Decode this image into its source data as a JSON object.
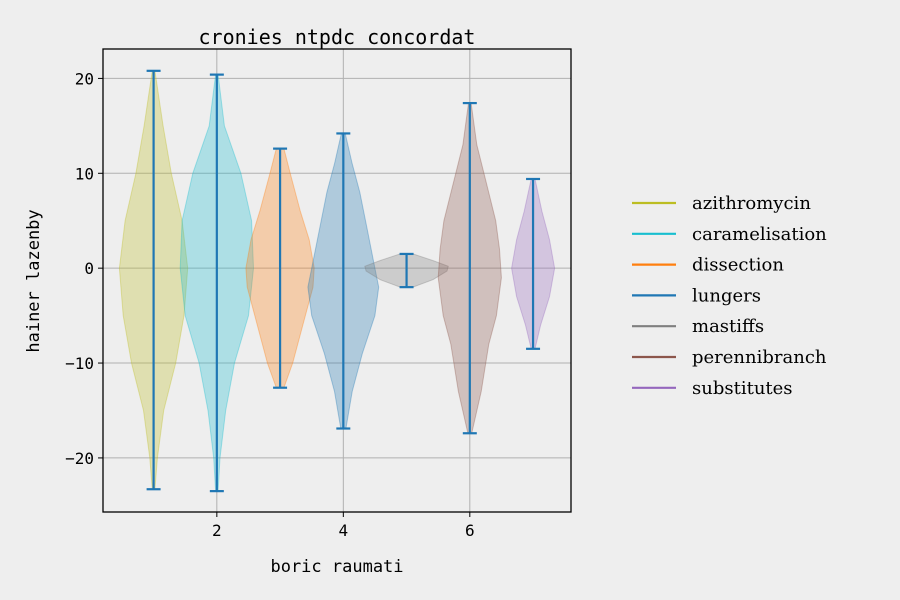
{
  "chart_data": {
    "type": "violin",
    "title": "cronies ntpdc concordat",
    "xlabel": "boric raumati",
    "ylabel": "hainer lazenby",
    "xlim": [
      0.2,
      7.6
    ],
    "ylim": [
      -25.7,
      23.1
    ],
    "xticks": [
      2,
      4,
      6
    ],
    "yticks": [
      -20,
      -10,
      0,
      10,
      20
    ],
    "grid": true,
    "legend_position": "right",
    "stat_color": "#1f77b4",
    "series": [
      {
        "name": "azithromycin",
        "position": 1,
        "min": -23.3,
        "max": 20.8,
        "color": "#bcbd22",
        "density": [
          [
            -23.3,
            0.02
          ],
          [
            -20,
            0.06
          ],
          [
            -15,
            0.16
          ],
          [
            -10,
            0.35
          ],
          [
            -5,
            0.48
          ],
          [
            0,
            0.54
          ],
          [
            5,
            0.45
          ],
          [
            10,
            0.28
          ],
          [
            15,
            0.15
          ],
          [
            20.8,
            0.02
          ]
        ]
      },
      {
        "name": "caramelisation",
        "position": 2,
        "min": -23.5,
        "max": 20.4,
        "color": "#17becf",
        "density": [
          [
            -23.5,
            0.02
          ],
          [
            -20,
            0.05
          ],
          [
            -15,
            0.14
          ],
          [
            -10,
            0.28
          ],
          [
            -5,
            0.5
          ],
          [
            0,
            0.58
          ],
          [
            5,
            0.55
          ],
          [
            10,
            0.38
          ],
          [
            15,
            0.12
          ],
          [
            20.4,
            0.02
          ]
        ]
      },
      {
        "name": "dissection",
        "position": 3,
        "min": -12.6,
        "max": 12.6,
        "color": "#ff7f0e",
        "density": [
          [
            -12.6,
            0.06
          ],
          [
            -10,
            0.2
          ],
          [
            -6,
            0.36
          ],
          [
            -2,
            0.52
          ],
          [
            0,
            0.54
          ],
          [
            3,
            0.46
          ],
          [
            6,
            0.32
          ],
          [
            10,
            0.16
          ],
          [
            12.6,
            0.06
          ]
        ]
      },
      {
        "name": "lungers",
        "position": 4,
        "min": -16.9,
        "max": 14.2,
        "color": "#1f77b4",
        "density": [
          [
            -16.9,
            0.04
          ],
          [
            -13,
            0.14
          ],
          [
            -9,
            0.3
          ],
          [
            -5,
            0.5
          ],
          [
            -2,
            0.56
          ],
          [
            0,
            0.5
          ],
          [
            4,
            0.38
          ],
          [
            8,
            0.26
          ],
          [
            11,
            0.14
          ],
          [
            14.2,
            0.03
          ]
        ]
      },
      {
        "name": "mastiffs",
        "position": 5,
        "min": -2.0,
        "max": 1.5,
        "color": "#7f7f7f",
        "density": [
          [
            -2,
            0.1
          ],
          [
            -1.2,
            0.42
          ],
          [
            -0.3,
            0.64
          ],
          [
            0.2,
            0.66
          ],
          [
            0.8,
            0.42
          ],
          [
            1.5,
            0.1
          ]
        ]
      },
      {
        "name": "perennibranch",
        "position": 6,
        "min": -17.4,
        "max": 17.4,
        "color": "#8c564b",
        "density": [
          [
            -17.4,
            0.03
          ],
          [
            -13,
            0.18
          ],
          [
            -8,
            0.3
          ],
          [
            -5,
            0.42
          ],
          [
            -1,
            0.5
          ],
          [
            2,
            0.47
          ],
          [
            5,
            0.41
          ],
          [
            9,
            0.26
          ],
          [
            13,
            0.11
          ],
          [
            17.4,
            0.02
          ]
        ]
      },
      {
        "name": "substitutes",
        "position": 7,
        "min": -8.5,
        "max": 9.4,
        "color": "#9467bd",
        "density": [
          [
            -8.5,
            0.03
          ],
          [
            -6,
            0.12
          ],
          [
            -3,
            0.26
          ],
          [
            0,
            0.34
          ],
          [
            3,
            0.26
          ],
          [
            6,
            0.14
          ],
          [
            9.4,
            0.03
          ]
        ]
      }
    ]
  }
}
